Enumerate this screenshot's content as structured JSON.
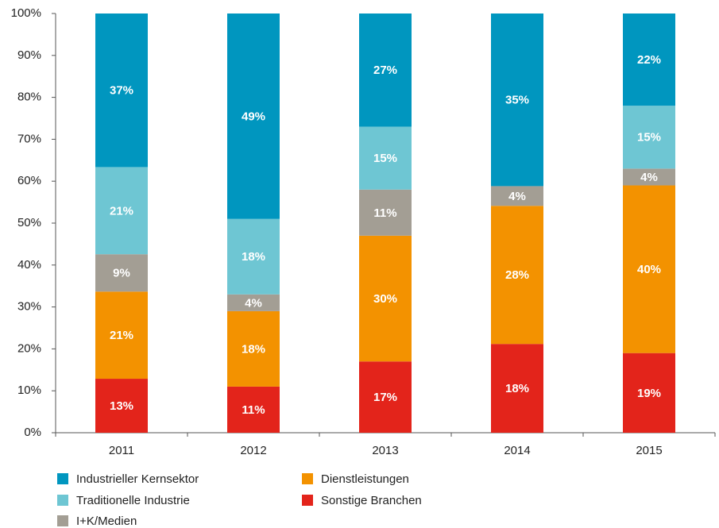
{
  "chart_data": {
    "type": "bar",
    "stacking": "percent",
    "categories": [
      "2011",
      "2012",
      "2013",
      "2014",
      "2015"
    ],
    "series": [
      {
        "name": "Sonstige Branchen",
        "color": "#e3241b",
        "values": [
          13,
          11,
          17,
          18,
          19
        ],
        "value_labels": [
          "13%",
          "11%",
          "17%",
          "18%",
          "19%"
        ]
      },
      {
        "name": "Dienstleistungen",
        "color": "#f39200",
        "values": [
          21,
          18,
          30,
          28,
          40
        ],
        "value_labels": [
          "21%",
          "18%",
          "30%",
          "28%",
          "40%"
        ]
      },
      {
        "name": "I+K/Medien",
        "color": "#a39e94",
        "values": [
          9,
          4,
          11,
          4,
          4
        ],
        "value_labels": [
          "9%",
          "4%",
          "11%",
          "4%",
          "4%"
        ]
      },
      {
        "name": "Traditionelle Industrie",
        "color": "#6ec6d3",
        "values": [
          21,
          18,
          15,
          0,
          15
        ],
        "value_labels": [
          "21%",
          "18%",
          "15%",
          null,
          "15%"
        ]
      },
      {
        "name": "Industrieller Kernsektor",
        "color": "#0096bf",
        "values": [
          37,
          49,
          27,
          35,
          22
        ],
        "value_labels": [
          "37%",
          "49%",
          "27%",
          "35%",
          "22%"
        ]
      }
    ],
    "ylim": [
      0,
      100
    ],
    "yticks": [
      {
        "value": 0,
        "label": "0%"
      },
      {
        "value": 10,
        "label": "10%"
      },
      {
        "value": 20,
        "label": "20%"
      },
      {
        "value": 30,
        "label": "30%"
      },
      {
        "value": 40,
        "label": "40%"
      },
      {
        "value": 50,
        "label": "50%"
      },
      {
        "value": 60,
        "label": "60%"
      },
      {
        "value": 70,
        "label": "70%"
      },
      {
        "value": 80,
        "label": "80%"
      },
      {
        "value": 90,
        "label": "90%"
      },
      {
        "value": 100,
        "label": "100%"
      }
    ],
    "grid": false
  }
}
